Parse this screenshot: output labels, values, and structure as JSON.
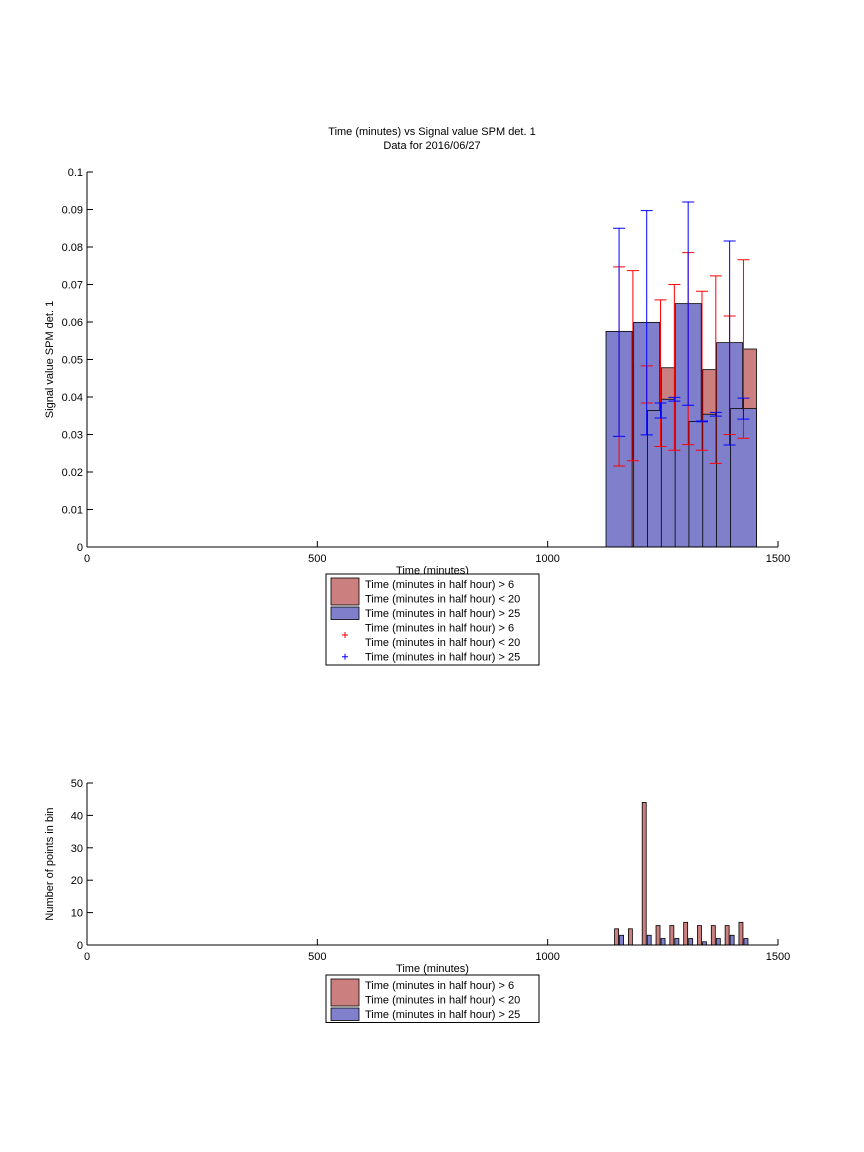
{
  "colors": {
    "red_bar": "#cc7f7f",
    "blue_bar": "#7f7fcc",
    "red_err": "#ff0000",
    "blue_err": "#0000ff",
    "axis": "#000000"
  },
  "chart_data": [
    {
      "type": "bar",
      "title": "Time (minutes) vs Signal value SPM det. 1",
      "subtitle": "Data for 2016/06/27",
      "xlabel": "Time (minutes)",
      "ylabel": "Signal value SPM det. 1",
      "xlim": [
        0,
        1500
      ],
      "ylim": [
        0,
        0.1
      ],
      "xticks": [
        0,
        500,
        1000,
        1500
      ],
      "xtick_labels": [
        "0",
        "500",
        "1000",
        "1500"
      ],
      "yticks": [
        0,
        0.01,
        0.02,
        0.03,
        0.04,
        0.05,
        0.06,
        0.07,
        0.08,
        0.09,
        0.1
      ],
      "ytick_labels": [
        "0",
        "0.01",
        "0.02",
        "0.03",
        "0.04",
        "0.05",
        "0.06",
        "0.07",
        "0.08",
        "0.09",
        "0.1"
      ],
      "grid": false,
      "legend_position": "below",
      "legend": [
        {
          "kind": "patch",
          "series": 0,
          "lines": [
            "Time (minutes in half hour) > 6",
            "Time (minutes in half hour) < 20"
          ]
        },
        {
          "kind": "patch",
          "series": 1,
          "lines": [
            "Time (minutes in half hour) > 25"
          ]
        },
        {
          "kind": "marker",
          "series": 0,
          "lines": [
            "Time (minutes in half hour) > 6",
            "Time (minutes in half hour) < 20"
          ]
        },
        {
          "kind": "marker",
          "series": 1,
          "lines": [
            "Time (minutes in half hour) > 25"
          ]
        }
      ],
      "bar_width": 27,
      "series": [
        {
          "color_key": "red_bar",
          "err_color_key": "red_err",
          "x": [
            1185,
            1245,
            1275,
            1335,
            1365,
            1425
          ],
          "values": [
            0.0483,
            0.0463,
            0.0478,
            0.047,
            0.0473,
            0.0528
          ],
          "err_low": [
            0.023,
            0.0268,
            0.0258,
            0.0258,
            0.0223,
            0.029
          ],
          "err_high": [
            0.0737,
            0.0659,
            0.07,
            0.0682,
            0.0723,
            0.0766
          ]
        },
        {
          "color_key": "blue_bar",
          "err_color_key": "blue_err",
          "x": [
            1155,
            1215,
            1245,
            1275,
            1305,
            1335,
            1365,
            1395,
            1425
          ],
          "values": [
            0.0575,
            0.0599,
            0.0364,
            0.0394,
            0.0649,
            0.0335,
            0.0354,
            0.0545,
            0.0369
          ],
          "err_low": [
            0.0295,
            0.0299,
            0.0344,
            0.0389,
            0.0378,
            0.0334,
            0.0349,
            0.0272,
            0.0341
          ],
          "err_high": [
            0.085,
            0.0897,
            0.0384,
            0.0399,
            0.092,
            0.0336,
            0.0359,
            0.0816,
            0.0397
          ]
        }
      ],
      "extra_error_markers": [
        {
          "x": 1155,
          "low": 0.0216,
          "high": 0.0747,
          "color_key": "red_err"
        },
        {
          "x": 1215,
          "low": 0.0384,
          "high": 0.0483,
          "color_key": "red_err"
        },
        {
          "x": 1305,
          "low": 0.0273,
          "high": 0.0785,
          "color_key": "red_err"
        },
        {
          "x": 1395,
          "low": 0.03,
          "high": 0.0616,
          "color_key": "red_err"
        }
      ]
    },
    {
      "type": "bar",
      "title": "",
      "xlabel": "Time (minutes)",
      "ylabel": "Number of points in bin",
      "xlim": [
        0,
        1500
      ],
      "ylim": [
        0,
        50
      ],
      "xticks": [
        0,
        500,
        1000,
        1500
      ],
      "xtick_labels": [
        "0",
        "500",
        "1000",
        "1500"
      ],
      "yticks": [
        0,
        10,
        20,
        30,
        40,
        50
      ],
      "ytick_labels": [
        "0",
        "10",
        "20",
        "30",
        "40",
        "50"
      ],
      "grid": false,
      "legend_position": "below",
      "legend": [
        {
          "kind": "patch",
          "series": 0,
          "lines": [
            "Time (minutes in half hour) > 6",
            "Time (minutes in half hour) < 20"
          ]
        },
        {
          "kind": "patch",
          "series": 1,
          "lines": [
            "Time (minutes in half hour) > 25"
          ]
        }
      ],
      "bar_width": 9,
      "series": [
        {
          "color_key": "red_bar",
          "x": [
            1155,
            1185,
            1215,
            1245,
            1275,
            1305,
            1335,
            1365,
            1395,
            1425
          ],
          "values": [
            5,
            5,
            44,
            6,
            6,
            7,
            6,
            6,
            6,
            7
          ]
        },
        {
          "color_key": "blue_bar",
          "x": [
            1155,
            1185,
            1215,
            1245,
            1275,
            1305,
            1335,
            1365,
            1395,
            1425
          ],
          "values": [
            3,
            0,
            3,
            2,
            2,
            2,
            1,
            2,
            3,
            2
          ]
        }
      ]
    }
  ]
}
